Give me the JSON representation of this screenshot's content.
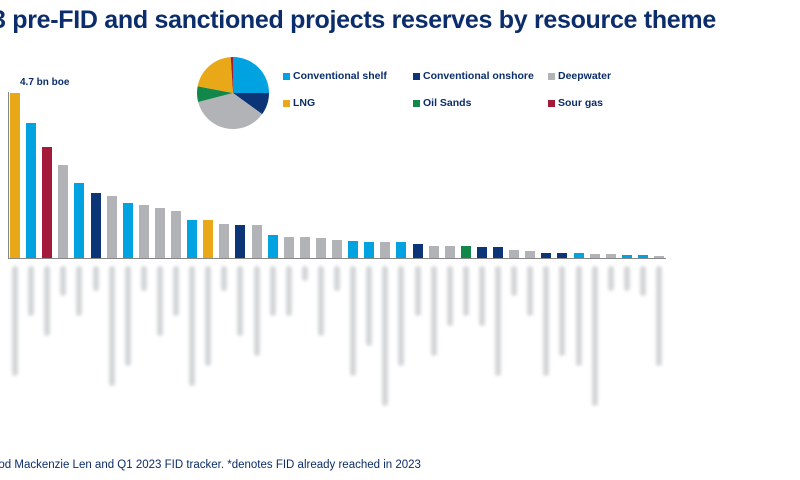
{
  "header": {
    "title": "3 pre-FID and sanctioned projects reserves by resource theme"
  },
  "colors": {
    "Conventional shelf": "#00a3e0",
    "Conventional onshore": "#0b3577",
    "Deepwater": "#b1b3b6",
    "LNG": "#e8a817",
    "Oil Sands": "#11884a",
    "Sour gas": "#a31a3a"
  },
  "legend": [
    {
      "label": "Conventional shelf",
      "color": "#00a3e0"
    },
    {
      "label": "Conventional onshore",
      "color": "#0b3577"
    },
    {
      "label": "Deepwater",
      "color": "#b1b3b6"
    },
    {
      "label": "LNG",
      "color": "#e8a817"
    },
    {
      "label": "Oil Sands",
      "color": "#11884a"
    },
    {
      "label": "Sour gas",
      "color": "#a31a3a"
    }
  ],
  "annotation": "4.7 bn boe",
  "footer": {
    "source": "ood Mackenzie Len and Q1 2023 FID tracker. *denotes FID already reached in 2023"
  },
  "chart_data": [
    {
      "type": "bar",
      "title": "pre-FID and sanctioned projects reserves by resource theme",
      "ylabel": "bn boe",
      "annotation": "4.7 bn boe",
      "categories_note": "project names illegible (blurred)",
      "values": [
        4.7,
        3.85,
        3.15,
        2.65,
        2.15,
        1.85,
        1.78,
        1.57,
        1.5,
        1.43,
        1.35,
        1.08,
        1.08,
        0.98,
        0.95,
        0.95,
        0.65,
        0.6,
        0.6,
        0.58,
        0.52,
        0.48,
        0.47,
        0.45,
        0.45,
        0.4,
        0.35,
        0.35,
        0.33,
        0.3,
        0.3,
        0.22,
        0.2,
        0.15,
        0.15,
        0.13,
        0.1,
        0.1,
        0.08,
        0.08,
        0.06
      ],
      "themes": [
        "LNG",
        "Conventional shelf",
        "Sour gas",
        "Deepwater",
        "Conventional shelf",
        "Conventional onshore",
        "Deepwater",
        "Conventional shelf",
        "Deepwater",
        "Deepwater",
        "Deepwater",
        "Conventional shelf",
        "LNG",
        "Deepwater",
        "Conventional onshore",
        "Deepwater",
        "Conventional shelf",
        "Deepwater",
        "Deepwater",
        "Deepwater",
        "Deepwater",
        "Conventional shelf",
        "Conventional shelf",
        "Deepwater",
        "Conventional shelf",
        "Conventional onshore",
        "Deepwater",
        "Deepwater",
        "Oil Sands",
        "Conventional onshore",
        "Conventional onshore",
        "Deepwater",
        "Deepwater",
        "Conventional onshore",
        "Conventional onshore",
        "Conventional shelf",
        "Deepwater",
        "Deepwater",
        "Conventional shelf",
        "Conventional shelf",
        "Deepwater"
      ],
      "ylim": [
        0,
        4.8
      ]
    },
    {
      "type": "pie",
      "title": "Share by resource theme",
      "categories": [
        "Conventional shelf",
        "Conventional onshore",
        "Deepwater",
        "Oil Sands",
        "LNG",
        "Sour gas"
      ],
      "values": [
        25,
        10,
        36,
        7,
        21,
        1
      ]
    }
  ]
}
